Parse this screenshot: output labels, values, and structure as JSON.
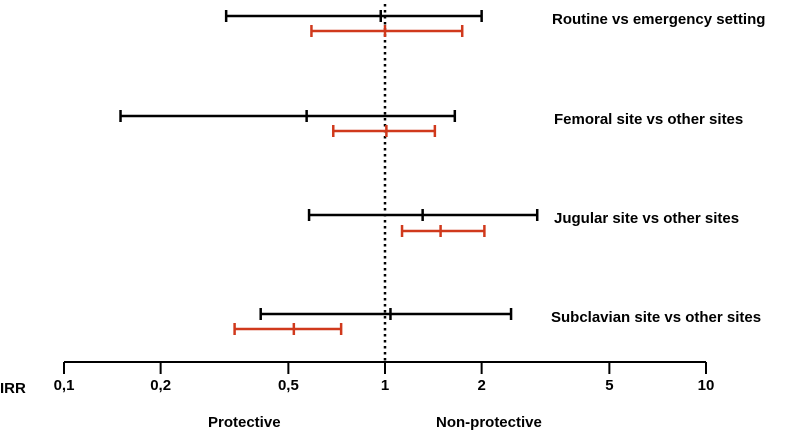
{
  "chart_data": {
    "type": "forest",
    "x_scale": "log",
    "xlim": [
      0.1,
      10
    ],
    "axis_prefix": "IRR",
    "ticks": [
      {
        "value": 0.1,
        "label": "0,1"
      },
      {
        "value": 0.2,
        "label": "0,2"
      },
      {
        "value": 0.5,
        "label": "0,5"
      },
      {
        "value": 1,
        "label": "1"
      },
      {
        "value": 2,
        "label": "2"
      },
      {
        "value": 5,
        "label": "5"
      },
      {
        "value": 10,
        "label": "10"
      }
    ],
    "reference_line": 1,
    "left_caption": "Protective",
    "right_caption": "Non-protective",
    "series_colors": {
      "black": "#000000",
      "red": "#d0391c"
    },
    "rows": [
      {
        "label": "Routine vs emergency setting",
        "estimates": [
          {
            "series": "black",
            "point": 0.97,
            "lower": 0.32,
            "upper": 2.0
          },
          {
            "series": "red",
            "point": 1.0,
            "lower": 0.59,
            "upper": 1.74
          }
        ]
      },
      {
        "label": "Femoral site vs other sites",
        "estimates": [
          {
            "series": "black",
            "point": 0.57,
            "lower": 0.15,
            "upper": 1.65
          },
          {
            "series": "red",
            "point": 1.01,
            "lower": 0.69,
            "upper": 1.43
          }
        ]
      },
      {
        "label": "Jugular site vs other sites",
        "estimates": [
          {
            "series": "black",
            "point": 1.31,
            "lower": 0.58,
            "upper": 2.98
          },
          {
            "series": "red",
            "point": 1.49,
            "lower": 1.13,
            "upper": 2.04
          }
        ]
      },
      {
        "label": "Subclavian site vs other sites",
        "estimates": [
          {
            "series": "black",
            "point": 1.04,
            "lower": 0.41,
            "upper": 2.47
          },
          {
            "series": "red",
            "point": 0.52,
            "lower": 0.34,
            "upper": 0.73
          }
        ]
      }
    ]
  }
}
